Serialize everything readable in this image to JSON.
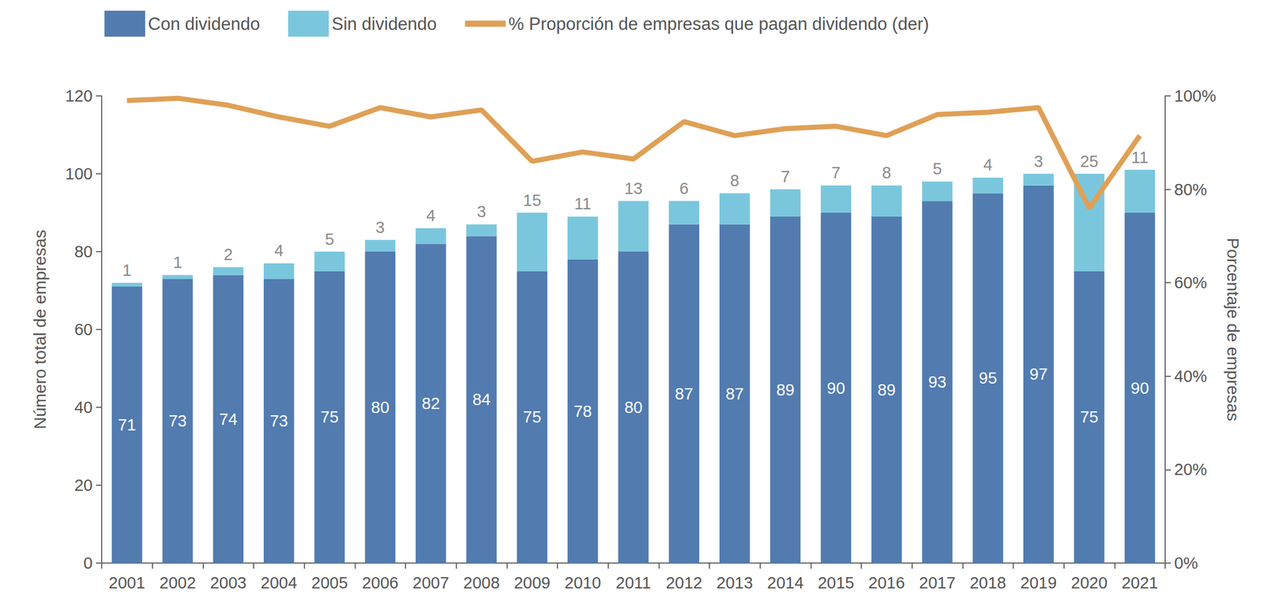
{
  "chart_data": {
    "type": "bar",
    "stacked": true,
    "data_labels": true,
    "grid": false,
    "legend": "top",
    "y_label": "Número total de empresas",
    "y2_label": "Porcentaje de empresas",
    "categories": [
      "2001",
      "2002",
      "2003",
      "2004",
      "2005",
      "2006",
      "2007",
      "2008",
      "2009",
      "2010",
      "2011",
      "2012",
      "2013",
      "2014",
      "2015",
      "2016",
      "2017",
      "2018",
      "2019",
      "2020",
      "2021"
    ],
    "ylim": [
      0,
      120
    ],
    "yticks": [
      0,
      20,
      40,
      60,
      80,
      100,
      120
    ],
    "y2lim": [
      0,
      100
    ],
    "y2ticks": [
      {
        "value": 0,
        "label": "0%"
      },
      {
        "value": 20,
        "label": "20%"
      },
      {
        "value": 40,
        "label": "40%"
      },
      {
        "value": 60,
        "label": "60%"
      },
      {
        "value": 80,
        "label": "80%"
      },
      {
        "value": 100,
        "label": "100%"
      }
    ],
    "series": [
      {
        "name": "Con dividendo",
        "type": "bar",
        "color": "#527bb0",
        "values": [
          71,
          73,
          74,
          73,
          75,
          80,
          82,
          84,
          75,
          78,
          80,
          87,
          87,
          89,
          90,
          89,
          93,
          95,
          97,
          75,
          90
        ]
      },
      {
        "name": "Sin dividendo",
        "type": "bar",
        "color": "#7ac7dd",
        "values": [
          1,
          1,
          2,
          4,
          5,
          3,
          4,
          3,
          15,
          11,
          13,
          6,
          8,
          7,
          7,
          8,
          5,
          4,
          3,
          25,
          11
        ]
      },
      {
        "name": "% Proporción de empresas que pagan dividendo (der)",
        "type": "line",
        "axis": "y2",
        "color": "#dfa056",
        "marker": "none",
        "line_style": "solid",
        "data_labels": false,
        "values": [
          99,
          99.5,
          98,
          95.5,
          93.5,
          97.5,
          95.5,
          97,
          86,
          88,
          86.5,
          94.5,
          91.5,
          93,
          93.5,
          91.5,
          96,
          96.5,
          97.5,
          76,
          91.5
        ]
      }
    ]
  }
}
